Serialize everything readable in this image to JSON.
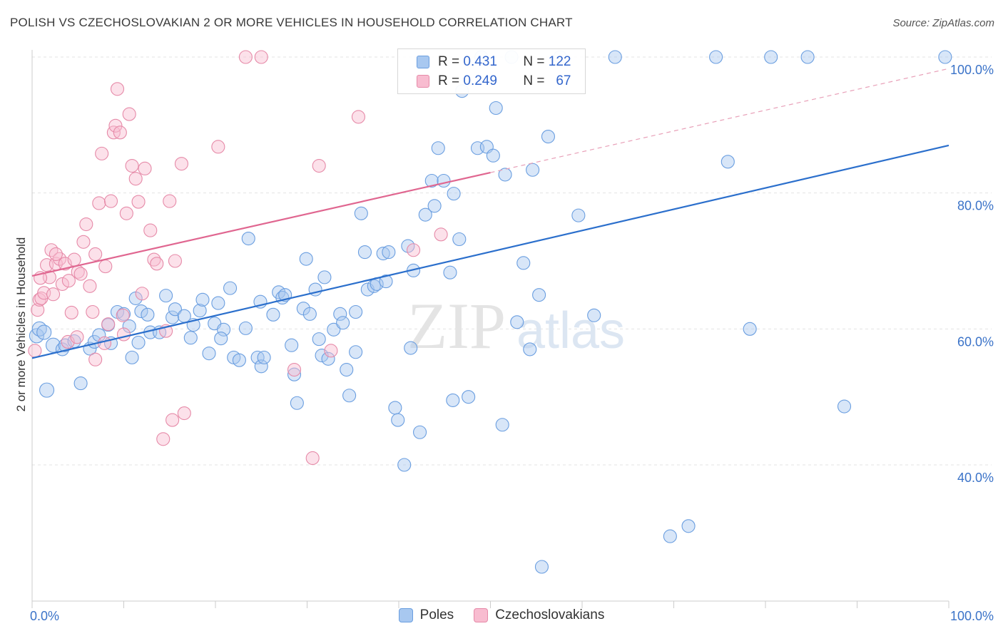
{
  "title": "POLISH VS CZECHOSLOVAKIAN 2 OR MORE VEHICLES IN HOUSEHOLD CORRELATION CHART",
  "source": "Source: ZipAtlas.com",
  "watermark": {
    "zip": "ZIP",
    "atlas": "atlas"
  },
  "legend": {
    "rows": [
      {
        "r_label": "R =",
        "r_value": "0.431",
        "n_label": "N =",
        "n_value": "122",
        "color": "#a8c8f0",
        "border": "#6a9ee0"
      },
      {
        "r_label": "R =",
        "r_value": "0.249",
        "n_label": "N =",
        "n_value": "67",
        "color": "#f8bcd0",
        "border": "#e68aa8"
      }
    ]
  },
  "chart_data": {
    "type": "scatter",
    "title": "POLISH VS CZECHOSLOVAKIAN 2 OR MORE VEHICLES IN HOUSEHOLD CORRELATION CHART",
    "xlabel": "",
    "ylabel": "2 or more Vehicles in Household",
    "xlim": [
      0,
      100
    ],
    "ylim": [
      20,
      102
    ],
    "x_tick_labels": [
      "0.0%",
      "100.0%"
    ],
    "y_ticks": [
      40,
      60,
      80,
      100
    ],
    "y_tick_labels": [
      "40.0%",
      "60.0%",
      "80.0%",
      "100.0%"
    ],
    "grid": true,
    "legend_placement": "top-center",
    "series": [
      {
        "name": "Poles",
        "color": "#6a9ee0",
        "fill": "#a8c8f0",
        "trend": {
          "x": [
            0,
            100
          ],
          "y": [
            55.7,
            87.0
          ]
        },
        "points": [
          [
            0.5,
            59.0
          ],
          [
            0.8,
            60.0
          ],
          [
            1.3,
            59.5
          ],
          [
            1.6,
            51.0
          ],
          [
            2.3,
            57.6
          ],
          [
            3.3,
            57.0
          ],
          [
            3.6,
            57.6
          ],
          [
            4.6,
            58.2
          ],
          [
            5.3,
            52.0
          ],
          [
            6.3,
            57.1
          ],
          [
            6.8,
            58.1
          ],
          [
            7.3,
            59.1
          ],
          [
            8.3,
            60.6
          ],
          [
            8.6,
            57.9
          ],
          [
            9.3,
            62.5
          ],
          [
            10.0,
            62.2
          ],
          [
            10.6,
            60.4
          ],
          [
            11.3,
            64.5
          ],
          [
            11.9,
            62.6
          ],
          [
            12.6,
            62.1
          ],
          [
            12.9,
            59.5
          ],
          [
            13.9,
            59.5
          ],
          [
            14.6,
            64.9
          ],
          [
            15.3,
            61.7
          ],
          [
            15.6,
            62.9
          ],
          [
            16.6,
            61.9
          ],
          [
            17.3,
            58.7
          ],
          [
            17.6,
            60.6
          ],
          [
            18.3,
            62.7
          ],
          [
            18.6,
            64.3
          ],
          [
            19.3,
            56.4
          ],
          [
            19.9,
            60.8
          ],
          [
            20.3,
            63.8
          ],
          [
            20.9,
            59.9
          ],
          [
            21.6,
            66.0
          ],
          [
            22.0,
            55.8
          ],
          [
            22.6,
            55.4
          ],
          [
            23.3,
            60.1
          ],
          [
            23.6,
            73.3
          ],
          [
            24.6,
            55.8
          ],
          [
            25.0,
            54.5
          ],
          [
            25.3,
            55.8
          ],
          [
            26.3,
            62.1
          ],
          [
            26.9,
            65.4
          ],
          [
            27.3,
            64.6
          ],
          [
            27.6,
            65.0
          ],
          [
            28.3,
            57.6
          ],
          [
            28.9,
            49.1
          ],
          [
            29.6,
            63.0
          ],
          [
            29.9,
            70.3
          ],
          [
            30.3,
            62.2
          ],
          [
            30.9,
            65.8
          ],
          [
            31.6,
            56.1
          ],
          [
            31.9,
            67.6
          ],
          [
            32.3,
            55.6
          ],
          [
            32.9,
            59.9
          ],
          [
            33.6,
            62.2
          ],
          [
            33.9,
            60.9
          ],
          [
            34.3,
            54.0
          ],
          [
            34.6,
            50.2
          ],
          [
            35.3,
            62.5
          ],
          [
            35.9,
            77.0
          ],
          [
            36.3,
            71.3
          ],
          [
            36.6,
            65.8
          ],
          [
            37.3,
            66.3
          ],
          [
            37.6,
            66.6
          ],
          [
            38.3,
            71.1
          ],
          [
            38.9,
            71.3
          ],
          [
            39.6,
            48.4
          ],
          [
            39.9,
            46.6
          ],
          [
            40.6,
            40.0
          ],
          [
            41.0,
            72.2
          ],
          [
            41.3,
            57.2
          ],
          [
            41.6,
            68.6
          ],
          [
            42.3,
            44.8
          ],
          [
            42.9,
            76.8
          ],
          [
            43.6,
            81.8
          ],
          [
            43.9,
            78.1
          ],
          [
            44.3,
            86.6
          ],
          [
            44.9,
            81.8
          ],
          [
            45.6,
            68.3
          ],
          [
            46.0,
            79.9
          ],
          [
            46.6,
            73.2
          ],
          [
            46.9,
            95.0
          ],
          [
            47.6,
            50.0
          ],
          [
            48.6,
            86.6
          ],
          [
            49.0,
            100
          ],
          [
            49.6,
            86.8
          ],
          [
            50.3,
            85.5
          ],
          [
            50.6,
            92.5
          ],
          [
            51.3,
            45.9
          ],
          [
            51.6,
            82.7
          ],
          [
            52.3,
            100
          ],
          [
            53.6,
            69.7
          ],
          [
            54.3,
            57.0
          ],
          [
            54.6,
            83.4
          ],
          [
            55.3,
            65.0
          ],
          [
            55.6,
            25.0
          ],
          [
            56.3,
            88.3
          ],
          [
            57.6,
            100
          ],
          [
            59.6,
            76.7
          ],
          [
            61.3,
            62.0
          ],
          [
            63.6,
            100
          ],
          [
            69.6,
            29.5
          ],
          [
            71.6,
            31.0
          ],
          [
            74.6,
            100
          ],
          [
            75.9,
            84.6
          ],
          [
            78.3,
            60.0
          ],
          [
            80.6,
            100
          ],
          [
            84.6,
            100
          ],
          [
            88.6,
            48.6
          ],
          [
            99.6,
            100
          ],
          [
            35.3,
            56.6
          ],
          [
            38.6,
            67.0
          ],
          [
            24.9,
            64.0
          ],
          [
            28.6,
            53.3
          ],
          [
            20.6,
            58.6
          ],
          [
            11.6,
            58.0
          ],
          [
            45.9,
            49.5
          ],
          [
            52.9,
            61.0
          ],
          [
            31.3,
            58.5
          ],
          [
            10.9,
            55.8
          ]
        ]
      },
      {
        "name": "Czechoslovakians",
        "color": "#e68aa8",
        "fill": "#f8bcd0",
        "trend": {
          "x": [
            0,
            50
          ],
          "y": [
            67.8,
            83.0
          ]
        },
        "trend_extension": {
          "x": [
            50,
            100
          ],
          "y": [
            83.0,
            98.3
          ]
        },
        "points": [
          [
            0.3,
            56.8
          ],
          [
            0.6,
            62.8
          ],
          [
            0.8,
            64.3
          ],
          [
            1.0,
            64.5
          ],
          [
            1.3,
            65.3
          ],
          [
            1.6,
            69.4
          ],
          [
            1.9,
            67.6
          ],
          [
            2.1,
            71.6
          ],
          [
            2.3,
            65.1
          ],
          [
            2.6,
            69.6
          ],
          [
            3.0,
            70.3
          ],
          [
            3.3,
            66.6
          ],
          [
            3.6,
            69.6
          ],
          [
            4.0,
            67.1
          ],
          [
            4.3,
            62.4
          ],
          [
            4.6,
            70.2
          ],
          [
            5.0,
            68.4
          ],
          [
            5.3,
            68.1
          ],
          [
            5.6,
            72.8
          ],
          [
            5.9,
            75.4
          ],
          [
            6.3,
            66.3
          ],
          [
            6.6,
            62.5
          ],
          [
            6.9,
            71.0
          ],
          [
            7.3,
            78.5
          ],
          [
            7.6,
            85.8
          ],
          [
            8.0,
            69.2
          ],
          [
            8.3,
            60.7
          ],
          [
            8.6,
            78.8
          ],
          [
            8.9,
            88.9
          ],
          [
            9.1,
            89.9
          ],
          [
            9.3,
            95.3
          ],
          [
            9.6,
            88.9
          ],
          [
            10.0,
            59.2
          ],
          [
            10.3,
            77.0
          ],
          [
            10.6,
            91.6
          ],
          [
            10.9,
            84.0
          ],
          [
            11.3,
            82.1
          ],
          [
            11.6,
            78.7
          ],
          [
            12.0,
            65.2
          ],
          [
            12.3,
            83.6
          ],
          [
            12.9,
            74.5
          ],
          [
            13.3,
            70.2
          ],
          [
            13.6,
            69.6
          ],
          [
            14.3,
            43.8
          ],
          [
            14.6,
            59.7
          ],
          [
            15.0,
            78.8
          ],
          [
            15.3,
            46.6
          ],
          [
            15.6,
            70.0
          ],
          [
            16.3,
            84.3
          ],
          [
            16.6,
            47.6
          ],
          [
            20.3,
            86.8
          ],
          [
            23.3,
            100
          ],
          [
            25.0,
            100
          ],
          [
            28.6,
            54.0
          ],
          [
            30.6,
            41.0
          ],
          [
            31.3,
            84.0
          ],
          [
            32.6,
            56.8
          ],
          [
            35.6,
            91.2
          ],
          [
            41.6,
            71.6
          ],
          [
            44.6,
            73.9
          ],
          [
            3.9,
            58.1
          ],
          [
            6.9,
            55.5
          ],
          [
            2.6,
            71.0
          ],
          [
            0.9,
            67.5
          ],
          [
            4.9,
            58.8
          ],
          [
            7.9,
            57.9
          ],
          [
            9.9,
            62.0
          ]
        ]
      }
    ]
  },
  "bottom_legend": [
    {
      "label": "Poles",
      "color": "#a8c8f0",
      "border": "#6a9ee0"
    },
    {
      "label": "Czechoslovakians",
      "color": "#f8bcd0",
      "border": "#e68aa8"
    }
  ]
}
